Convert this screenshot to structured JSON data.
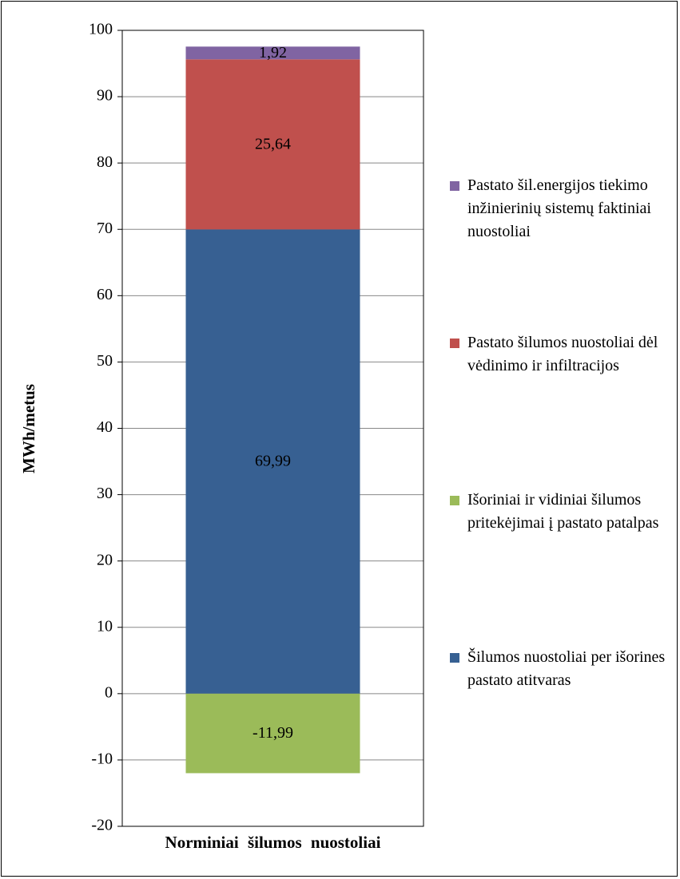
{
  "chart_data": {
    "type": "bar",
    "stacked": true,
    "y_label": "MWh/metus",
    "categories": [
      "Norminiai šilumos nuostoliai"
    ],
    "series": [
      {
        "name": "Šilumos nuostoliai per išorines pastato atitvaras",
        "color": "#376092",
        "values": [
          69.99
        ],
        "value_labels": [
          "69,99"
        ]
      },
      {
        "name": "Išoriniai ir vidiniai šilumos pritekėjimai į pastato patalpas",
        "color": "#9bbb59",
        "values": [
          -11.99
        ],
        "value_labels": [
          "-11,99"
        ]
      },
      {
        "name": "Pastato šilumos nuostoliai dėl vėdinimo ir infiltracijos",
        "color": "#c0504d",
        "values": [
          25.64
        ],
        "value_labels": [
          "25,64"
        ]
      },
      {
        "name": "Pastato šil.energijos tiekimo inžinierinių sistemų faktiniai nuostoliai",
        "color": "#8064a2",
        "values": [
          1.92
        ],
        "value_labels": [
          "1,92"
        ]
      }
    ],
    "ylim": [
      -20,
      100
    ],
    "yticks": [
      -20,
      -10,
      0,
      10,
      20,
      30,
      40,
      50,
      60,
      70,
      80,
      90,
      100
    ],
    "grid": true,
    "legend": "right"
  }
}
